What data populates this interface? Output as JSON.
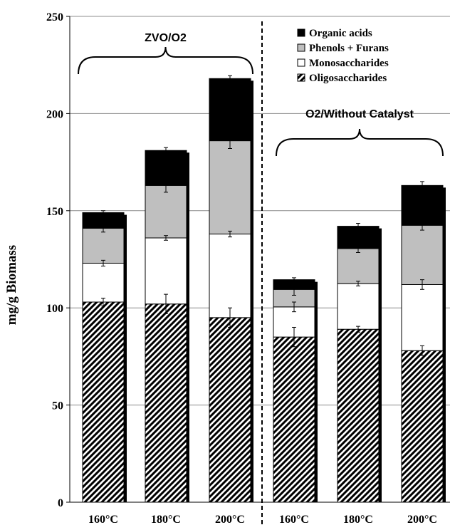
{
  "chart_data": {
    "type": "bar",
    "stacked": true,
    "ylabel": "mg/g Biomass",
    "ylim": [
      0,
      250
    ],
    "yticks": [
      0,
      50,
      100,
      150,
      200,
      250
    ],
    "grid": "horizontal",
    "legend_position": "top-right",
    "categories": [
      "160°C",
      "180°C",
      "200°C",
      "160°C",
      "180°C",
      "200°C"
    ],
    "groups": [
      {
        "label": "ZVO/O2",
        "category_indices": [
          0,
          1,
          2
        ]
      },
      {
        "label": "O2/Without Catalyst",
        "category_indices": [
          3,
          4,
          5
        ]
      }
    ],
    "series": [
      {
        "name": "Oligosaccharides",
        "values": [
          103,
          102,
          95,
          85,
          89,
          78
        ],
        "errors": [
          2,
          5,
          5,
          5,
          1.5,
          2.5
        ],
        "fill": "hatch"
      },
      {
        "name": "Monosaccharides",
        "values": [
          20,
          34,
          43,
          15.5,
          23.5,
          34
        ],
        "errors": [
          1.5,
          1.2,
          1.5,
          2.5,
          1.2,
          2.5
        ],
        "fill": "#ffffff"
      },
      {
        "name": "Phenols + Furans",
        "values": [
          18,
          27,
          48,
          9,
          18,
          30.5
        ],
        "errors": [
          2,
          3.5,
          4,
          3,
          2,
          2.5
        ],
        "fill": "#bfbfbf"
      },
      {
        "name": "Organic acids",
        "values": [
          8,
          18,
          32,
          5,
          11.5,
          20.5
        ],
        "errors": [
          1,
          1.5,
          1.5,
          1,
          1.5,
          2
        ],
        "fill": "#000000"
      }
    ],
    "legend_order": [
      "Organic acids",
      "Phenols + Furans",
      "Monosaccharides",
      "Oligosaccharides"
    ]
  }
}
